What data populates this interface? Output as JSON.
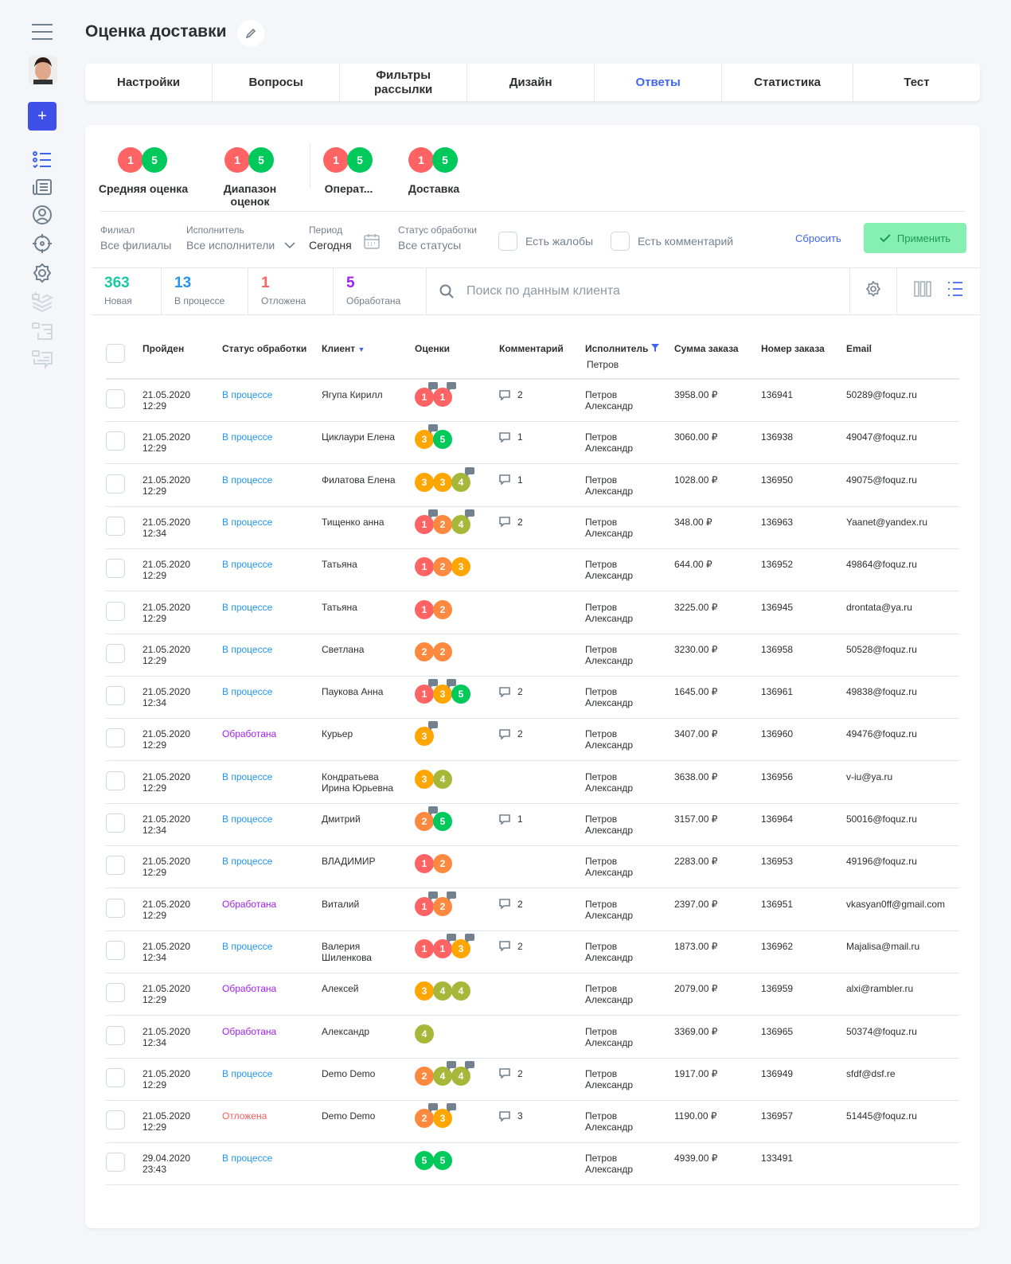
{
  "page": {
    "title": "Оценка доставки"
  },
  "tabs": [
    "Настройки",
    "Вопросы",
    "Фильтры рассылки",
    "Дизайн",
    "Ответы",
    "Статистика",
    "Тест"
  ],
  "active_tab": "Ответы",
  "rating_colors": {
    "1": "#ff6363",
    "2": "#ff8a3f",
    "3": "#ffa600",
    "4": "#a6b83a",
    "5": "#00c95c"
  },
  "summary": [
    {
      "label": "Средняя оценка",
      "min": "1",
      "max": "5"
    },
    {
      "label": "Диапазон оценок",
      "min": "1",
      "max": "5"
    },
    {
      "label": "Операт...",
      "min": "1",
      "max": "5"
    },
    {
      "label": "Доставка",
      "min": "1",
      "max": "5"
    }
  ],
  "filters": {
    "branch_label": "Филиал",
    "branch_value": "Все филиалы",
    "executor_label": "Исполнитель",
    "executor_value": "Все исполнители",
    "period_label": "Период",
    "period_value": "Сегодня",
    "status_label": "Статус обработки",
    "status_value": "Все статусы",
    "complaints": "Есть жалобы",
    "comments": "Есть комментарий",
    "reset": "Сбросить",
    "apply": "Применить"
  },
  "stats": [
    {
      "n": "363",
      "label": "Новая",
      "color": "#1ac8a6"
    },
    {
      "n": "13",
      "label": "В процессе",
      "color": "#2196f3"
    },
    {
      "n": "1",
      "label": "Отложена",
      "color": "#ff6363"
    },
    {
      "n": "5",
      "label": "Обработана",
      "color": "#a020f0"
    }
  ],
  "search": {
    "placeholder": "Поиск по данным клиента"
  },
  "columns": {
    "passed": "Пройден",
    "status": "Статус обработки",
    "client": "Клиент",
    "ratings": "Оценки",
    "comment": "Комментарий",
    "executor": "Исполнитель",
    "executor_filter": "Петров",
    "sum": "Сумма заказа",
    "order": "Номер заказа",
    "email": "Email"
  },
  "status_colors": {
    "В процессе": "#2196f3",
    "Обработана": "#a020f0",
    "Отложена": "#ff5a5a"
  },
  "rows": [
    {
      "date": "21.05.2020",
      "time": "12:29",
      "status": "В процессе",
      "client": "Ягупа Кирилл",
      "ratings": [
        [
          1,
          1
        ],
        [
          1,
          1
        ]
      ],
      "comments": "2",
      "executor": [
        "Петров",
        "Александр"
      ],
      "sum": "3958.00 ₽",
      "order": "136941",
      "email": "50289@foquz.ru"
    },
    {
      "date": "21.05.2020",
      "time": "12:29",
      "status": "В процессе",
      "client": "Циклаури Елена",
      "ratings": [
        [
          3,
          1
        ],
        [
          5,
          0
        ]
      ],
      "comments": "1",
      "executor": [
        "Петров",
        "Александр"
      ],
      "sum": "3060.00 ₽",
      "order": "136938",
      "email": "49047@foquz.ru"
    },
    {
      "date": "21.05.2020",
      "time": "12:29",
      "status": "В процессе",
      "client": "Филатова Елена",
      "ratings": [
        [
          3,
          0
        ],
        [
          3,
          0
        ],
        [
          4,
          1
        ]
      ],
      "comments": "1",
      "executor": [
        "Петров",
        "Александр"
      ],
      "sum": "1028.00 ₽",
      "order": "136950",
      "email": "49075@foquz.ru"
    },
    {
      "date": "21.05.2020",
      "time": "12:34",
      "status": "В процессе",
      "client": "Тищенко анна",
      "ratings": [
        [
          1,
          1
        ],
        [
          2,
          0
        ],
        [
          4,
          1
        ]
      ],
      "comments": "2",
      "executor": [
        "Петров",
        "Александр"
      ],
      "sum": "348.00 ₽",
      "order": "136963",
      "email": "Yaanet@yandex.ru"
    },
    {
      "date": "21.05.2020",
      "time": "12:29",
      "status": "В процессе",
      "client": "Татьяна",
      "ratings": [
        [
          1,
          0
        ],
        [
          2,
          0
        ],
        [
          3,
          0
        ]
      ],
      "comments": "",
      "executor": [
        "Петров",
        "Александр"
      ],
      "sum": "644.00 ₽",
      "order": "136952",
      "email": "49864@foquz.ru"
    },
    {
      "date": "21.05.2020",
      "time": "12:29",
      "status": "В процессе",
      "client": "Татьяна",
      "ratings": [
        [
          1,
          0
        ],
        [
          2,
          0
        ]
      ],
      "comments": "",
      "executor": [
        "Петров",
        "Александр"
      ],
      "sum": "3225.00 ₽",
      "order": "136945",
      "email": "drontata@ya.ru"
    },
    {
      "date": "21.05.2020",
      "time": "12:29",
      "status": "В процессе",
      "client": "Светлана",
      "ratings": [
        [
          2,
          0
        ],
        [
          2,
          0
        ]
      ],
      "comments": "",
      "executor": [
        "Петров",
        "Александр"
      ],
      "sum": "3230.00 ₽",
      "order": "136958",
      "email": "50528@foquz.ru"
    },
    {
      "date": "21.05.2020",
      "time": "12:34",
      "status": "В процессе",
      "client": "Паукова Анна",
      "ratings": [
        [
          1,
          1
        ],
        [
          3,
          1
        ],
        [
          5,
          0
        ]
      ],
      "comments": "2",
      "executor": [
        "Петров",
        "Александр"
      ],
      "sum": "1645.00 ₽",
      "order": "136961",
      "email": "49838@foquz.ru"
    },
    {
      "date": "21.05.2020",
      "time": "12:29",
      "status": "Обработана",
      "client": "Курьер",
      "ratings": [
        [
          3,
          1
        ]
      ],
      "comments": "2",
      "executor": [
        "Петров",
        "Александр"
      ],
      "sum": "3407.00 ₽",
      "order": "136960",
      "email": "49476@foquz.ru"
    },
    {
      "date": "21.05.2020",
      "time": "12:29",
      "status": "В процессе",
      "client": "Кондратьева Ирина Юрьевна",
      "ratings": [
        [
          3,
          0
        ],
        [
          4,
          0
        ]
      ],
      "comments": "",
      "executor": [
        "Петров",
        "Александр"
      ],
      "sum": "3638.00 ₽",
      "order": "136956",
      "email": "v-iu@ya.ru"
    },
    {
      "date": "21.05.2020",
      "time": "12:34",
      "status": "В процессе",
      "client": "Дмитрий",
      "ratings": [
        [
          2,
          1
        ],
        [
          5,
          0
        ]
      ],
      "comments": "1",
      "executor": [
        "Петров",
        "Александр"
      ],
      "sum": "3157.00 ₽",
      "order": "136964",
      "email": "50016@foquz.ru"
    },
    {
      "date": "21.05.2020",
      "time": "12:29",
      "status": "В процессе",
      "client": "ВЛАДИМИР",
      "ratings": [
        [
          1,
          0
        ],
        [
          2,
          0
        ]
      ],
      "comments": "",
      "executor": [
        "Петров",
        "Александр"
      ],
      "sum": "2283.00 ₽",
      "order": "136953",
      "email": "49196@foquz.ru"
    },
    {
      "date": "21.05.2020",
      "time": "12:29",
      "status": "Обработана",
      "client": "Виталий",
      "ratings": [
        [
          1,
          1
        ],
        [
          2,
          1
        ]
      ],
      "comments": "2",
      "executor": [
        "Петров",
        "Александр"
      ],
      "sum": "2397.00 ₽",
      "order": "136951",
      "email": "vkasyan0ff@gmail.com"
    },
    {
      "date": "21.05.2020",
      "time": "12:34",
      "status": "В процессе",
      "client": "Валерия Шиленкова",
      "ratings": [
        [
          1,
          0
        ],
        [
          1,
          1
        ],
        [
          3,
          1
        ]
      ],
      "comments": "2",
      "executor": [
        "Петров",
        "Александр"
      ],
      "sum": "1873.00 ₽",
      "order": "136962",
      "email": "Majalisa@mail.ru"
    },
    {
      "date": "21.05.2020",
      "time": "12:29",
      "status": "Обработана",
      "client": "Алексей",
      "ratings": [
        [
          3,
          0
        ],
        [
          4,
          0
        ],
        [
          4,
          0
        ]
      ],
      "comments": "",
      "executor": [
        "Петров",
        "Александр"
      ],
      "sum": "2079.00 ₽",
      "order": "136959",
      "email": "alxi@rambler.ru"
    },
    {
      "date": "21.05.2020",
      "time": "12:34",
      "status": "Обработана",
      "client": "Александр",
      "ratings": [
        [
          4,
          0
        ]
      ],
      "comments": "",
      "executor": [
        "Петров",
        "Александр"
      ],
      "sum": "3369.00 ₽",
      "order": "136965",
      "email": "50374@foquz.ru"
    },
    {
      "date": "21.05.2020",
      "time": "12:29",
      "status": "В процессе",
      "client": "Demo Demo",
      "ratings": [
        [
          2,
          0
        ],
        [
          4,
          1
        ],
        [
          4,
          1
        ]
      ],
      "comments": "2",
      "executor": [
        "Петров",
        "Александр"
      ],
      "sum": "1917.00 ₽",
      "order": "136949",
      "email": "sfdf@dsf.re"
    },
    {
      "date": "21.05.2020",
      "time": "12:29",
      "status": "Отложена",
      "client": "Demo Demo",
      "ratings": [
        [
          2,
          1
        ],
        [
          3,
          1
        ]
      ],
      "comments": "3",
      "executor": [
        "Петров",
        "Александр"
      ],
      "sum": "1190.00 ₽",
      "order": "136957",
      "email": "51445@foquz.ru"
    },
    {
      "date": "29.04.2020",
      "time": "23:43",
      "status": "В процессе",
      "client": "",
      "ratings": [
        [
          5,
          0
        ],
        [
          5,
          0
        ]
      ],
      "comments": "",
      "executor": [
        "Петров",
        "Александр"
      ],
      "sum": "4939.00 ₽",
      "order": "133491",
      "email": ""
    }
  ],
  "icons": {
    "menu": "hamburger-icon",
    "add": "plus-icon",
    "edit": "pencil-icon",
    "calendar": "calendar-icon",
    "search": "search-icon",
    "settings": "gear-icon",
    "columns": "columns-icon",
    "list": "list-icon",
    "comment": "speech-bubble-icon",
    "filter": "funnel-icon",
    "sort": "caret-down-icon"
  }
}
